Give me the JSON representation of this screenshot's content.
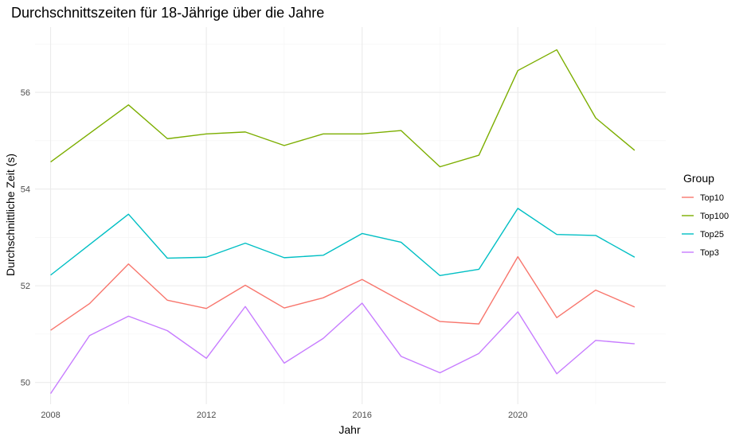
{
  "chart_data": {
    "type": "line",
    "title": "Durchschnittszeiten für 18-Jährige über die Jahre",
    "xlabel": "Jahr",
    "ylabel": "Durchschnittliche Zeit (s)",
    "x": [
      2008,
      2009,
      2010,
      2011,
      2012,
      2013,
      2014,
      2015,
      2016,
      2017,
      2018,
      2019,
      2020,
      2021,
      2022,
      2023
    ],
    "xlim": [
      2007.6,
      2023.8
    ],
    "ylim": [
      49.55,
      57.35
    ],
    "x_ticks": [
      "2008",
      "2012",
      "2016",
      "2020"
    ],
    "y_ticks": [
      "50",
      "52",
      "54",
      "56"
    ],
    "grid": true,
    "legend": {
      "title": "Group",
      "placement": "right"
    },
    "series": [
      {
        "name": "Top10",
        "color": "#F8766D",
        "values": [
          51.08,
          51.63,
          52.45,
          51.7,
          51.53,
          52.01,
          51.54,
          51.75,
          52.13,
          51.69,
          51.26,
          51.21,
          52.6,
          51.34,
          51.91,
          51.56
        ]
      },
      {
        "name": "Top100",
        "color": "#7CAE00",
        "values": [
          54.56,
          55.15,
          55.74,
          55.04,
          55.14,
          55.18,
          54.9,
          55.14,
          55.14,
          55.21,
          54.46,
          54.7,
          56.45,
          56.88,
          55.47,
          54.8
        ]
      },
      {
        "name": "Top25",
        "color": "#00BFC4",
        "values": [
          52.22,
          52.85,
          53.48,
          52.57,
          52.59,
          52.88,
          52.58,
          52.63,
          53.08,
          52.9,
          52.21,
          52.34,
          53.6,
          53.06,
          53.04,
          52.59
        ]
      },
      {
        "name": "Top3",
        "color": "#C77CFF",
        "values": [
          49.77,
          50.97,
          51.37,
          51.07,
          50.5,
          51.57,
          50.4,
          50.91,
          51.64,
          50.54,
          50.2,
          50.6,
          51.46,
          50.18,
          50.87,
          50.8
        ]
      }
    ]
  }
}
